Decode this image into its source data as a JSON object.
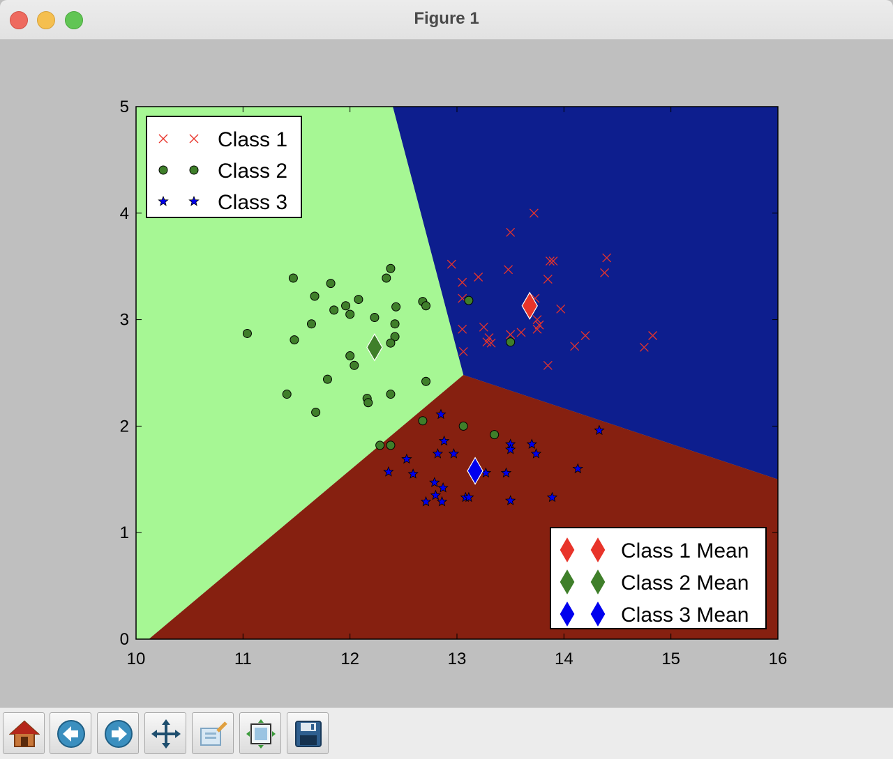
{
  "window": {
    "title": "Figure 1"
  },
  "toolbar": {
    "buttons": [
      {
        "icon": "home-icon"
      },
      {
        "icon": "back-arrow-icon"
      },
      {
        "icon": "forward-arrow-icon"
      },
      {
        "icon": "pan-icon"
      },
      {
        "icon": "zoom-icon"
      },
      {
        "icon": "subplots-icon"
      },
      {
        "icon": "save-icon"
      }
    ]
  },
  "colors": {
    "class1": "#e8342a",
    "class2": "#3f7f2a",
    "class3": "#0000ee",
    "region_class1": "#0d1e8e",
    "region_class2": "#a6f794",
    "region_class3": "#862010",
    "figure_bg": "#bfbfbf"
  },
  "chart_data": {
    "type": "scatter",
    "xlim": [
      10,
      16
    ],
    "ylim": [
      0,
      5
    ],
    "xticks": [
      "10",
      "11",
      "12",
      "13",
      "14",
      "15",
      "16"
    ],
    "yticks": [
      "0",
      "1",
      "2",
      "3",
      "4",
      "5"
    ],
    "grid": false,
    "regions": {
      "class1": [
        [
          12.4,
          5
        ],
        [
          16,
          5
        ],
        [
          16,
          1.5
        ],
        [
          13.06,
          2.48
        ]
      ],
      "class2": [
        [
          10,
          0
        ],
        [
          10.12,
          0
        ],
        [
          13.06,
          2.48
        ],
        [
          12.4,
          5
        ],
        [
          10,
          5
        ]
      ],
      "class3": [
        [
          10.12,
          0
        ],
        [
          16,
          0
        ],
        [
          16,
          1.5
        ],
        [
          13.06,
          2.48
        ]
      ]
    },
    "series": [
      {
        "name": "Class 1",
        "marker": "x",
        "color": "#e8342a",
        "points": [
          [
            13.72,
            4.0
          ],
          [
            13.5,
            3.82
          ],
          [
            12.95,
            3.52
          ],
          [
            13.2,
            3.4
          ],
          [
            13.05,
            3.35
          ],
          [
            13.48,
            3.47
          ],
          [
            13.87,
            3.55
          ],
          [
            13.9,
            3.55
          ],
          [
            14.4,
            3.58
          ],
          [
            14.38,
            3.44
          ],
          [
            13.85,
            3.38
          ],
          [
            13.05,
            3.2
          ],
          [
            13.73,
            3.2
          ],
          [
            13.97,
            3.1
          ],
          [
            13.75,
            3.0
          ],
          [
            13.77,
            2.95
          ],
          [
            13.75,
            2.91
          ],
          [
            13.05,
            2.91
          ],
          [
            13.25,
            2.93
          ],
          [
            13.3,
            2.83
          ],
          [
            13.28,
            2.79
          ],
          [
            13.32,
            2.78
          ],
          [
            13.5,
            2.86
          ],
          [
            13.6,
            2.88
          ],
          [
            14.2,
            2.85
          ],
          [
            14.1,
            2.75
          ],
          [
            13.06,
            2.7
          ],
          [
            14.75,
            2.74
          ],
          [
            14.83,
            2.85
          ],
          [
            13.85,
            2.57
          ]
        ]
      },
      {
        "name": "Class 2",
        "marker": "o",
        "color": "#3f7f2a",
        "points": [
          [
            11.04,
            2.87
          ],
          [
            11.47,
            3.39
          ],
          [
            11.67,
            3.22
          ],
          [
            11.82,
            3.34
          ],
          [
            12.38,
            3.48
          ],
          [
            12.34,
            3.39
          ],
          [
            12.08,
            3.19
          ],
          [
            11.96,
            3.13
          ],
          [
            12.43,
            3.12
          ],
          [
            12.68,
            3.17
          ],
          [
            12.71,
            3.13
          ],
          [
            11.85,
            3.09
          ],
          [
            12.0,
            3.05
          ],
          [
            12.23,
            3.02
          ],
          [
            12.42,
            2.96
          ],
          [
            11.64,
            2.96
          ],
          [
            12.42,
            2.84
          ],
          [
            12.38,
            2.78
          ],
          [
            11.48,
            2.81
          ],
          [
            12.0,
            2.66
          ],
          [
            12.04,
            2.57
          ],
          [
            11.79,
            2.44
          ],
          [
            12.71,
            2.42
          ],
          [
            11.41,
            2.3
          ],
          [
            12.38,
            2.3
          ],
          [
            12.16,
            2.26
          ],
          [
            12.17,
            2.22
          ],
          [
            11.68,
            2.13
          ],
          [
            12.68,
            2.05
          ],
          [
            13.06,
            2.0
          ],
          [
            13.35,
            1.92
          ],
          [
            12.28,
            1.82
          ],
          [
            12.38,
            1.82
          ],
          [
            13.11,
            3.18
          ],
          [
            13.5,
            2.79
          ]
        ]
      },
      {
        "name": "Class 3",
        "marker": "*",
        "color": "#0000ee",
        "points": [
          [
            12.85,
            2.11
          ],
          [
            14.33,
            1.96
          ],
          [
            12.88,
            1.86
          ],
          [
            13.5,
            1.83
          ],
          [
            13.7,
            1.83
          ],
          [
            13.5,
            1.78
          ],
          [
            12.82,
            1.74
          ],
          [
            12.97,
            1.74
          ],
          [
            13.74,
            1.74
          ],
          [
            12.53,
            1.69
          ],
          [
            14.13,
            1.6
          ],
          [
            12.36,
            1.57
          ],
          [
            12.59,
            1.55
          ],
          [
            13.27,
            1.56
          ],
          [
            13.46,
            1.56
          ],
          [
            12.79,
            1.47
          ],
          [
            12.87,
            1.42
          ],
          [
            12.8,
            1.35
          ],
          [
            13.08,
            1.33
          ],
          [
            13.11,
            1.33
          ],
          [
            12.71,
            1.29
          ],
          [
            12.86,
            1.29
          ],
          [
            13.5,
            1.3
          ],
          [
            13.89,
            1.33
          ]
        ]
      }
    ],
    "means": [
      {
        "name": "Class 1 Mean",
        "x": 13.68,
        "y": 3.13,
        "color": "#e8342a"
      },
      {
        "name": "Class 2 Mean",
        "x": 12.23,
        "y": 2.74,
        "color": "#3f7f2a"
      },
      {
        "name": "Class 3 Mean",
        "x": 13.17,
        "y": 1.58,
        "color": "#0000ee"
      }
    ],
    "legends": [
      {
        "placement": "upper-left",
        "entries": [
          "Class 1",
          "Class 2",
          "Class 3"
        ]
      },
      {
        "placement": "lower-right",
        "entries": [
          "Class 1 Mean",
          "Class 2 Mean",
          "Class 3 Mean"
        ]
      }
    ]
  }
}
